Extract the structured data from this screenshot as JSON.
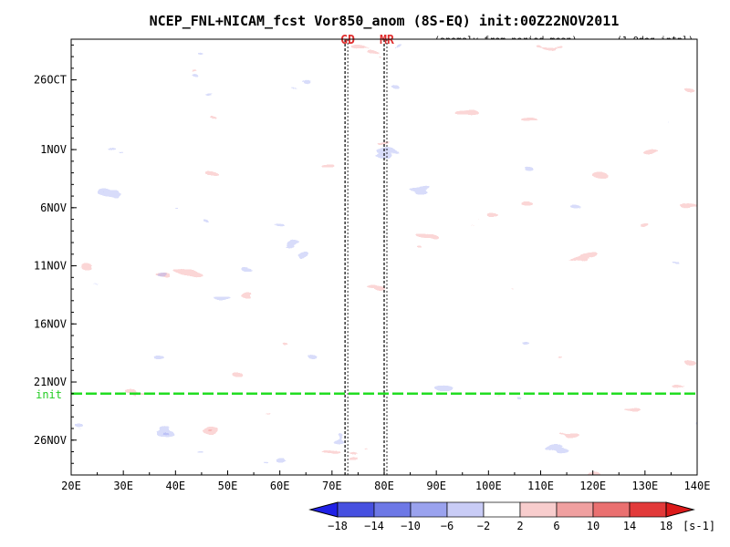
{
  "chart_data": {
    "type": "heatmap",
    "title": "NCEP_FNL+NICAM_fcst Vor850_anom (8S-EQ) init:00Z22NOV2011",
    "subtitle_left": "(anomaly from period mean)",
    "subtitle_right": "(1.0deg intpl)",
    "xlabel": "",
    "ylabel": "",
    "x_ticks": [
      "20E",
      "30E",
      "40E",
      "50E",
      "60E",
      "70E",
      "80E",
      "90E",
      "100E",
      "110E",
      "120E",
      "130E",
      "140E"
    ],
    "x_tick_values": [
      20,
      30,
      40,
      50,
      60,
      70,
      80,
      90,
      100,
      110,
      120,
      130,
      140
    ],
    "xlim": [
      20,
      140
    ],
    "y_ticks": [
      "26OCT",
      "1NOV",
      "6NOV",
      "11NOV",
      "16NOV",
      "21NOV",
      "26NOV"
    ],
    "y_tick_days": [
      0,
      6,
      11,
      16,
      21,
      26,
      31
    ],
    "ylim_days": [
      -3.5,
      34
    ],
    "init_label": "init",
    "init_day": 27,
    "markers": [
      {
        "label": "GD",
        "lon": 72.5
      },
      {
        "label": "MR",
        "lon": 80
      }
    ],
    "colorbar": {
      "levels": [
        -18,
        -14,
        -10,
        -6,
        -2,
        2,
        6,
        10,
        14,
        18
      ],
      "labels": [
        "−18",
        "−14",
        "−10",
        "−6",
        "−2",
        "2",
        "6",
        "10",
        "14",
        "18"
      ],
      "colors": [
        "#1f20e6",
        "#4650e0",
        "#6d78e6",
        "#9aa2ee",
        "#c9ccf6",
        "#ffffff",
        "#f8cdcd",
        "#f0a0a0",
        "#ea7070",
        "#e23a3a",
        "#dc1a1a"
      ],
      "unit": "[s-1]"
    }
  }
}
